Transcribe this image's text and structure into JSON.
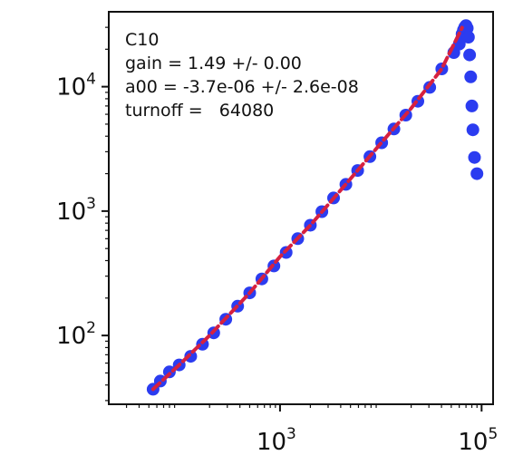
{
  "chart_data": {
    "type": "scatter",
    "x_scale": "log",
    "y_scale": "log",
    "xlim": [
      20,
      130000
    ],
    "ylim": [
      28,
      40000
    ],
    "x_ticks": [
      {
        "value": 1000,
        "base": "10",
        "exp": "3"
      },
      {
        "value": 100000,
        "base": "10",
        "exp": "5"
      }
    ],
    "y_ticks": [
      {
        "value": 100,
        "base": "10",
        "exp": "2"
      },
      {
        "value": 1000,
        "base": "10",
        "exp": "3"
      },
      {
        "value": 10000,
        "base": "10",
        "exp": "4"
      }
    ],
    "annotations": [
      "C10",
      "gain = 1.49 +/- 0.00",
      "a00 = -3.7e-06 +/- 2.6e-08",
      "turnoff =   64080"
    ],
    "colors": {
      "data": "#2b3cf0",
      "fit": "#d6213f"
    },
    "series": [
      {
        "kind": "points",
        "x": [
          55,
          65,
          80,
          100,
          130,
          170,
          220,
          290,
          380,
          500,
          660,
          870,
          1150,
          1500,
          2000,
          2600,
          3400,
          4500,
          5900,
          7800,
          10200,
          13500,
          17700,
          23300,
          30600,
          40300,
          53000,
          60000,
          64000,
          66000,
          68000,
          70000,
          72000,
          74000,
          76000,
          78000,
          80000,
          82000,
          85000,
          90000
        ],
        "y": [
          37,
          43,
          51,
          58,
          68,
          85,
          105,
          135,
          172,
          220,
          285,
          362,
          465,
          600,
          770,
          990,
          1275,
          1640,
          2120,
          2740,
          3540,
          4570,
          5910,
          7640,
          9880,
          13900,
          18800,
          22000,
          26500,
          28500,
          30000,
          31000,
          29500,
          25000,
          18000,
          12000,
          7000,
          4500,
          2700,
          2000
        ]
      },
      {
        "kind": "line",
        "x": [
          55,
          100,
          200,
          500,
          1000,
          2000,
          5000,
          10000,
          20000,
          40000,
          64080
        ],
        "y": [
          37,
          58,
          100,
          220,
          430,
          770,
          1820,
          3500,
          6700,
          13800,
          29800
        ]
      }
    ]
  }
}
